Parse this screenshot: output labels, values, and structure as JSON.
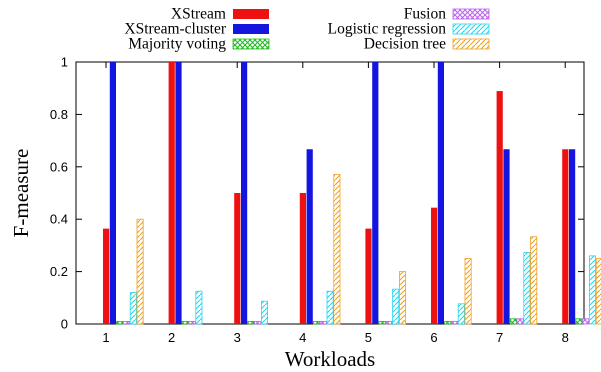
{
  "chart_data": {
    "type": "bar",
    "xlabel": "Workloads",
    "ylabel": "F-measure",
    "ylim": [
      0,
      1
    ],
    "yticks": [
      "0",
      "0.2",
      "0.4",
      "0.6",
      "0.8",
      "1"
    ],
    "categories": [
      "1",
      "2",
      "3",
      "4",
      "5",
      "6",
      "7",
      "8"
    ],
    "legend_position": "top",
    "series": [
      {
        "name": "XStream",
        "color": "#ee1111",
        "pattern": "solid",
        "values": [
          0.364,
          1.0,
          0.5,
          0.5,
          0.364,
          0.444,
          0.889,
          0.667
        ]
      },
      {
        "name": "XStream-cluster",
        "color": "#1515e0",
        "pattern": "solid",
        "values": [
          1.0,
          1.0,
          1.0,
          0.667,
          1.0,
          1.0,
          0.667,
          0.667
        ]
      },
      {
        "name": "Majority voting",
        "color": "#22bb22",
        "pattern": "crosshatch",
        "values": [
          0.01,
          0.01,
          0.01,
          0.01,
          0.01,
          0.01,
          0.02,
          0.02
        ]
      },
      {
        "name": "Fusion",
        "color": "#bb66ee",
        "pattern": "crosshatch",
        "values": [
          0.01,
          0.01,
          0.01,
          0.01,
          0.01,
          0.01,
          0.02,
          0.02
        ]
      },
      {
        "name": "Logistic regression",
        "color": "#22d8ee",
        "pattern": "diagonal",
        "values": [
          0.12,
          0.125,
          0.087,
          0.125,
          0.133,
          0.077,
          0.273,
          0.26
        ]
      },
      {
        "name": "Decision tree",
        "color": "#f0a020",
        "pattern": "diagonal",
        "values": [
          0.4,
          0.0,
          0.0,
          0.571,
          0.2,
          0.25,
          0.333,
          0.25
        ]
      }
    ]
  }
}
